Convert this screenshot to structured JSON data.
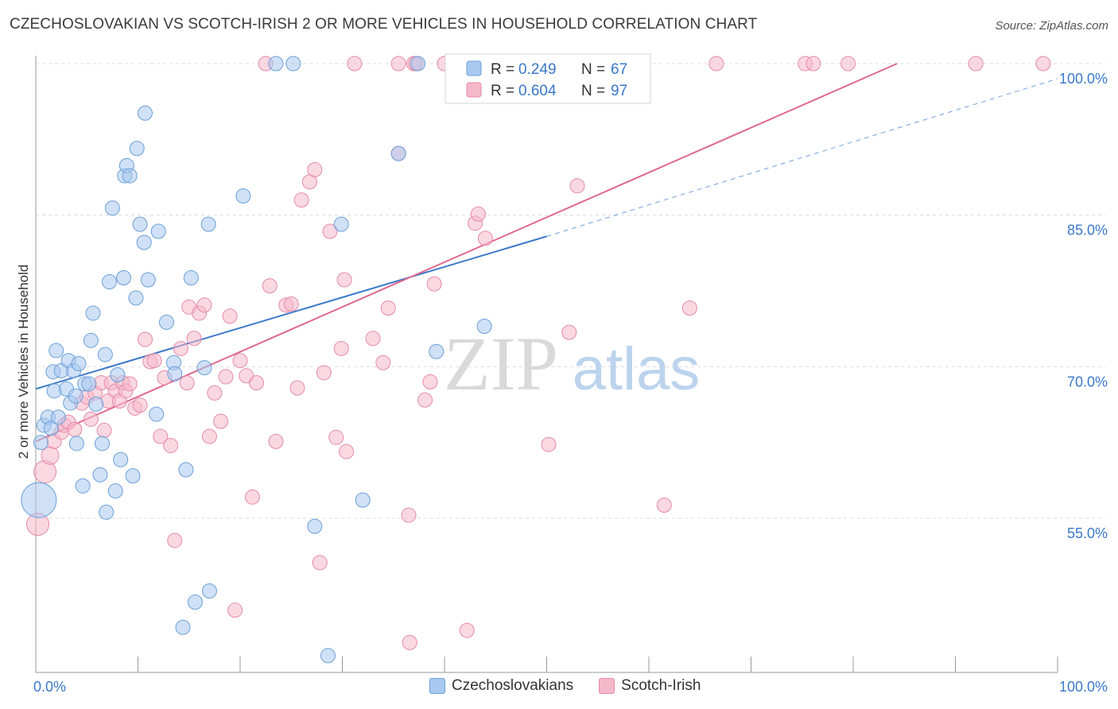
{
  "header": {
    "title": "CZECHOSLOVAKIAN VS SCOTCH-IRISH 2 OR MORE VEHICLES IN HOUSEHOLD CORRELATION CHART",
    "source": "Source: ZipAtlas.com"
  },
  "watermark": {
    "zip": "ZIP",
    "atlas": "atlas"
  },
  "legend_top": {
    "rows": [
      {
        "r_label": "R =",
        "r_value": "0.249",
        "n_label": "N =",
        "n_value": "67"
      },
      {
        "r_label": "R =",
        "r_value": "0.604",
        "n_label": "N =",
        "n_value": "97"
      }
    ]
  },
  "legend_bottom": {
    "items": [
      "Czechoslovakians",
      "Scotch-Irish"
    ]
  },
  "colors": {
    "blue_fill": "#a9c8f0",
    "blue_stroke": "#6a9fd8",
    "blue_line": "#3a78c9",
    "pink_fill": "#f5b8cb",
    "pink_stroke": "#e58aa7",
    "pink_line": "#e0688f",
    "value_text": "#3a78c9",
    "grid": "#dcdcdc"
  },
  "chart_data": {
    "type": "scatter",
    "title": "CZECHOSLOVAKIAN VS SCOTCH-IRISH 2 OR MORE VEHICLES IN HOUSEHOLD CORRELATION CHART",
    "xlabel": "",
    "ylabel": "2 or more Vehicles in Household",
    "xlim": [
      0,
      100
    ],
    "ylim": [
      40,
      101
    ],
    "x_tick_labels": [
      "0.0%",
      "100.0%"
    ],
    "y_tick_values": [
      55,
      70,
      85,
      100
    ],
    "y_tick_labels": [
      "55.0%",
      "70.0%",
      "85.0%",
      "100.0%"
    ],
    "grid": true,
    "legend_placement": "top-center",
    "series": [
      {
        "name": "Czechoslovakians",
        "color": "#a9c8f0",
        "R": 0.249,
        "N": 67,
        "trend": {
          "x0": 0,
          "y0": 67.8,
          "x1": 50,
          "y1": 82.9,
          "dash_to_x": 100,
          "dash_to_y": 98.5
        },
        "points": [
          [
            0.3,
            56.8,
            22
          ],
          [
            0.5,
            62.5,
            9
          ],
          [
            0.8,
            64.2,
            9
          ],
          [
            1.2,
            65.0,
            9
          ],
          [
            1.5,
            63.9,
            9
          ],
          [
            1.7,
            69.5,
            9
          ],
          [
            1.8,
            67.6,
            9
          ],
          [
            2.0,
            71.6,
            9
          ],
          [
            2.2,
            65.0,
            9
          ],
          [
            2.5,
            69.6,
            9
          ],
          [
            3.0,
            67.8,
            9
          ],
          [
            3.2,
            70.6,
            9
          ],
          [
            3.4,
            66.4,
            9
          ],
          [
            3.7,
            69.6,
            9
          ],
          [
            3.9,
            67.1,
            9
          ],
          [
            4.0,
            62.4,
            9
          ],
          [
            4.2,
            70.3,
            9
          ],
          [
            4.6,
            58.2,
            9
          ],
          [
            4.8,
            68.3,
            9
          ],
          [
            5.2,
            68.3,
            9
          ],
          [
            5.4,
            72.6,
            9
          ],
          [
            5.6,
            75.3,
            9
          ],
          [
            5.9,
            66.3,
            9
          ],
          [
            6.3,
            59.3,
            9
          ],
          [
            6.5,
            62.4,
            9
          ],
          [
            6.8,
            71.2,
            9
          ],
          [
            6.9,
            55.6,
            9
          ],
          [
            7.2,
            78.4,
            9
          ],
          [
            7.5,
            85.7,
            9
          ],
          [
            7.8,
            57.7,
            9
          ],
          [
            8.0,
            69.2,
            9
          ],
          [
            8.3,
            60.8,
            9
          ],
          [
            8.6,
            78.8,
            9
          ],
          [
            8.7,
            88.9,
            9
          ],
          [
            8.9,
            89.9,
            9
          ],
          [
            9.2,
            88.9,
            9
          ],
          [
            9.5,
            59.2,
            9
          ],
          [
            9.8,
            76.8,
            9
          ],
          [
            9.9,
            91.6,
            9
          ],
          [
            10.2,
            84.1,
            9
          ],
          [
            10.6,
            82.3,
            9
          ],
          [
            10.7,
            95.1,
            9
          ],
          [
            11.0,
            78.6,
            9
          ],
          [
            11.8,
            65.3,
            9
          ],
          [
            12.0,
            83.4,
            9
          ],
          [
            12.8,
            74.4,
            9
          ],
          [
            13.5,
            70.4,
            9
          ],
          [
            13.6,
            69.3,
            9
          ],
          [
            14.4,
            44.2,
            9
          ],
          [
            14.7,
            59.8,
            9
          ],
          [
            15.2,
            78.8,
            9
          ],
          [
            15.6,
            46.7,
            9
          ],
          [
            16.5,
            69.9,
            9
          ],
          [
            16.9,
            84.1,
            9
          ],
          [
            17.0,
            47.8,
            9
          ],
          [
            20.3,
            86.9,
            9
          ],
          [
            23.5,
            100,
            9
          ],
          [
            25.2,
            100,
            9
          ],
          [
            27.3,
            54.2,
            9
          ],
          [
            28.6,
            41.4,
            9
          ],
          [
            29.9,
            84.1,
            9
          ],
          [
            32.0,
            56.8,
            9
          ],
          [
            35.5,
            91.1,
            9
          ],
          [
            37.4,
            100,
            9
          ],
          [
            39.2,
            71.5,
            9
          ],
          [
            43.9,
            74.0,
            9
          ],
          [
            47.0,
            100,
            9
          ]
        ]
      },
      {
        "name": "Scotch-Irish",
        "color": "#f5b8cb",
        "R": 0.604,
        "N": 97,
        "trend": {
          "x0": 0,
          "y0": 62.6,
          "x1": 84.3,
          "y1": 100
        },
        "points": [
          [
            0.2,
            54.4,
            14
          ],
          [
            0.9,
            59.6,
            14
          ],
          [
            1.4,
            61.2,
            11
          ],
          [
            1.8,
            62.6,
            9
          ],
          [
            2.5,
            63.5,
            9
          ],
          [
            2.8,
            64.2,
            9
          ],
          [
            3.2,
            64.5,
            9
          ],
          [
            3.8,
            63.8,
            9
          ],
          [
            4.5,
            66.4,
            9
          ],
          [
            5.0,
            67.0,
            9
          ],
          [
            5.4,
            64.8,
            9
          ],
          [
            5.8,
            67.4,
            9
          ],
          [
            6.4,
            68.4,
            9
          ],
          [
            6.7,
            63.7,
            9
          ],
          [
            7.1,
            66.6,
            9
          ],
          [
            7.4,
            68.4,
            9
          ],
          [
            7.8,
            67.6,
            9
          ],
          [
            8.2,
            66.6,
            9
          ],
          [
            8.5,
            68.4,
            9
          ],
          [
            8.8,
            67.6,
            9
          ],
          [
            9.2,
            68.3,
            9
          ],
          [
            9.7,
            65.9,
            9
          ],
          [
            10.2,
            66.2,
            9
          ],
          [
            10.7,
            72.7,
            9
          ],
          [
            11.2,
            70.5,
            9
          ],
          [
            11.6,
            70.6,
            9
          ],
          [
            12.2,
            63.1,
            9
          ],
          [
            12.6,
            68.9,
            9
          ],
          [
            13.2,
            62.2,
            9
          ],
          [
            13.6,
            52.8,
            9
          ],
          [
            14.2,
            71.8,
            9
          ],
          [
            14.8,
            68.4,
            9
          ],
          [
            15.0,
            75.9,
            9
          ],
          [
            15.5,
            72.8,
            9
          ],
          [
            16.0,
            75.3,
            9
          ],
          [
            16.5,
            76.1,
            9
          ],
          [
            17.0,
            63.1,
            9
          ],
          [
            17.5,
            67.4,
            9
          ],
          [
            18.1,
            64.6,
            9
          ],
          [
            18.6,
            69.0,
            9
          ],
          [
            19.0,
            75.0,
            9
          ],
          [
            19.5,
            45.9,
            9
          ],
          [
            20.0,
            70.6,
            9
          ],
          [
            20.6,
            69.1,
            9
          ],
          [
            21.2,
            57.1,
            9
          ],
          [
            21.6,
            68.4,
            9
          ],
          [
            22.5,
            100,
            9
          ],
          [
            22.9,
            78.0,
            9
          ],
          [
            23.5,
            62.6,
            9
          ],
          [
            24.5,
            76.1,
            9
          ],
          [
            25.0,
            76.2,
            9
          ],
          [
            25.6,
            67.9,
            9
          ],
          [
            26.0,
            86.5,
            9
          ],
          [
            26.8,
            88.3,
            9
          ],
          [
            27.3,
            89.5,
            9
          ],
          [
            27.8,
            50.6,
            9
          ],
          [
            28.2,
            69.4,
            9
          ],
          [
            28.8,
            83.4,
            9
          ],
          [
            29.4,
            63.0,
            9
          ],
          [
            29.9,
            71.8,
            9
          ],
          [
            30.2,
            78.6,
            9
          ],
          [
            30.4,
            61.6,
            9
          ],
          [
            31.2,
            100,
            9
          ],
          [
            33.0,
            72.8,
            9
          ],
          [
            34.0,
            70.4,
            9
          ],
          [
            34.5,
            75.8,
            9
          ],
          [
            35.5,
            91.1,
            9
          ],
          [
            35.5,
            100,
            9
          ],
          [
            36.5,
            55.3,
            9
          ],
          [
            36.6,
            42.7,
            9
          ],
          [
            37.0,
            100,
            9
          ],
          [
            37.2,
            100,
            9
          ],
          [
            38.1,
            66.7,
            9
          ],
          [
            38.6,
            68.5,
            9
          ],
          [
            39.0,
            78.2,
            9
          ],
          [
            40.0,
            100,
            9
          ],
          [
            42.2,
            43.9,
            9
          ],
          [
            43.0,
            84.2,
            9
          ],
          [
            43.3,
            85.1,
            9
          ],
          [
            44.0,
            82.7,
            9
          ],
          [
            45.8,
            100,
            9
          ],
          [
            50.2,
            62.3,
            9
          ],
          [
            52.2,
            73.4,
            9
          ],
          [
            53.0,
            87.9,
            9
          ],
          [
            55.7,
            100,
            9
          ],
          [
            56.6,
            100,
            9
          ],
          [
            61.5,
            56.3,
            9
          ],
          [
            64.0,
            75.8,
            9
          ],
          [
            66.6,
            100,
            9
          ],
          [
            75.3,
            100,
            9
          ],
          [
            76.1,
            100,
            9
          ],
          [
            79.5,
            100,
            9
          ],
          [
            92.0,
            100,
            9
          ],
          [
            98.6,
            100,
            9
          ]
        ]
      }
    ]
  }
}
